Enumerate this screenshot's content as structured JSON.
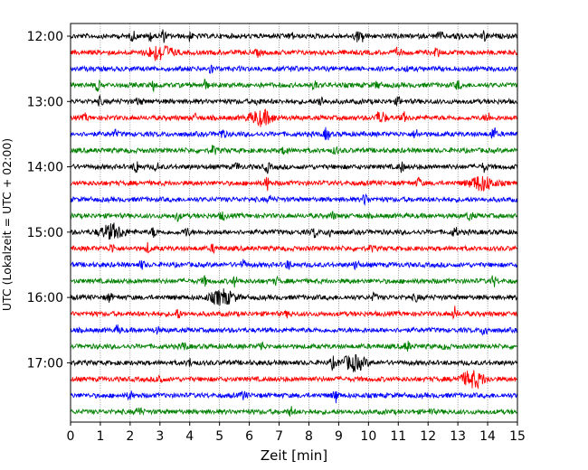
{
  "chart_data": {
    "type": "line",
    "subtype": "seismogram-dayplot",
    "xlabel": "Zeit  [min]",
    "ylabel": "UTC (Lokalzeit = UTC + 02:00)",
    "xlim": [
      0,
      15
    ],
    "x_ticks": [
      "0",
      "1",
      "2",
      "3",
      "4",
      "5",
      "6",
      "7",
      "8",
      "9",
      "10",
      "11",
      "12",
      "13",
      "14",
      "15"
    ],
    "y_ticks": [
      "12:00",
      "13:00",
      "14:00",
      "15:00",
      "16:00",
      "17:00"
    ],
    "trace_interval_min": 15,
    "trace_colors": [
      "#000000",
      "#ff0000",
      "#0000ff",
      "#008000"
    ],
    "grid": "vertical-dotted",
    "traces": [
      {
        "start": "12:00",
        "color": "#000000",
        "events": [
          [
            2.1,
            0.6
          ],
          [
            2.7,
            0.55
          ],
          [
            3.1,
            0.7
          ],
          [
            4.0,
            0.45
          ],
          [
            7.4,
            0.4
          ],
          [
            9.6,
            0.6
          ],
          [
            9.8,
            0.55
          ],
          [
            12.4,
            0.5
          ],
          [
            13.0,
            0.45
          ],
          [
            13.9,
            0.6
          ]
        ]
      },
      {
        "start": "12:15",
        "color": "#ff0000",
        "events": [
          [
            3.0,
            1.0
          ],
          [
            6.3,
            0.35
          ],
          [
            11.0,
            0.6
          ],
          [
            12.3,
            0.55
          ]
        ]
      },
      {
        "start": "12:30",
        "color": "#0000ff",
        "events": [
          [
            4.7,
            0.55
          ],
          [
            7.5,
            0.3
          ],
          [
            11.3,
            0.3
          ]
        ]
      },
      {
        "start": "12:45",
        "color": "#008000",
        "events": [
          [
            0.9,
            0.6
          ],
          [
            2.8,
            0.55
          ],
          [
            4.5,
            0.6
          ],
          [
            8.2,
            0.45
          ],
          [
            10.3,
            0.4
          ],
          [
            13.0,
            0.5
          ]
        ]
      },
      {
        "start": "13:00",
        "color": "#000000",
        "events": [
          [
            1.0,
            0.45
          ],
          [
            2.3,
            0.45
          ],
          [
            6.3,
            0.45
          ],
          [
            8.4,
            0.7
          ],
          [
            11.0,
            0.4
          ]
        ]
      },
      {
        "start": "13:15",
        "color": "#ff0000",
        "events": [
          [
            0.5,
            0.35
          ],
          [
            4.2,
            0.35
          ],
          [
            6.4,
            0.9
          ],
          [
            10.3,
            0.7
          ],
          [
            10.5,
            0.7
          ],
          [
            11.2,
            0.5
          ],
          [
            14.0,
            0.6
          ]
        ]
      },
      {
        "start": "13:30",
        "color": "#0000ff",
        "events": [
          [
            1.5,
            0.35
          ],
          [
            5.1,
            0.6
          ],
          [
            8.6,
            0.8
          ],
          [
            11.6,
            0.55
          ],
          [
            14.2,
            0.8
          ]
        ]
      },
      {
        "start": "13:45",
        "color": "#008000",
        "events": [
          [
            4.8,
            0.55
          ],
          [
            7.2,
            0.55
          ],
          [
            8.9,
            0.4
          ]
        ]
      },
      {
        "start": "14:00",
        "color": "#000000",
        "events": [
          [
            2.2,
            0.8
          ],
          [
            2.9,
            0.45
          ],
          [
            5.6,
            0.4
          ],
          [
            6.6,
            0.6
          ],
          [
            11.1,
            0.6
          ],
          [
            13.9,
            0.6
          ]
        ]
      },
      {
        "start": "14:15",
        "color": "#ff0000",
        "events": [
          [
            6.6,
            0.8
          ],
          [
            11.7,
            0.6
          ],
          [
            13.8,
            0.9
          ]
        ]
      },
      {
        "start": "14:30",
        "color": "#0000ff",
        "events": [
          [
            6.7,
            0.35
          ],
          [
            9.9,
            0.75
          ]
        ]
      },
      {
        "start": "14:45",
        "color": "#008000",
        "events": [
          [
            3.6,
            0.5
          ],
          [
            5.1,
            0.45
          ],
          [
            8.8,
            0.4
          ],
          [
            13.4,
            0.6
          ]
        ]
      },
      {
        "start": "15:00",
        "color": "#000000",
        "events": [
          [
            1.4,
            0.9
          ],
          [
            2.8,
            0.6
          ],
          [
            3.9,
            0.55
          ],
          [
            8.2,
            0.6
          ],
          [
            8.7,
            0.6
          ],
          [
            12.9,
            0.55
          ]
        ]
      },
      {
        "start": "15:15",
        "color": "#ff0000",
        "events": [
          [
            1.4,
            0.5
          ],
          [
            2.6,
            0.55
          ],
          [
            4.8,
            0.45
          ],
          [
            10.1,
            0.3
          ]
        ]
      },
      {
        "start": "15:30",
        "color": "#0000ff",
        "events": [
          [
            2.4,
            0.45
          ],
          [
            5.8,
            0.45
          ],
          [
            7.3,
            0.5
          ],
          [
            9.6,
            0.55
          ]
        ]
      },
      {
        "start": "15:45",
        "color": "#008000",
        "events": [
          [
            4.5,
            0.5
          ],
          [
            5.5,
            0.55
          ],
          [
            6.9,
            0.35
          ],
          [
            14.2,
            0.6
          ]
        ]
      },
      {
        "start": "16:00",
        "color": "#000000",
        "events": [
          [
            1.3,
            0.5
          ],
          [
            5.1,
            0.9
          ],
          [
            10.2,
            0.45
          ],
          [
            11.6,
            0.4
          ]
        ]
      },
      {
        "start": "16:15",
        "color": "#ff0000",
        "events": [
          [
            3.6,
            0.55
          ],
          [
            7.3,
            0.35
          ],
          [
            12.9,
            0.75
          ]
        ]
      },
      {
        "start": "16:30",
        "color": "#0000ff",
        "events": [
          [
            1.6,
            0.5
          ],
          [
            2.9,
            0.3
          ],
          [
            13.9,
            0.75
          ]
        ]
      },
      {
        "start": "16:45",
        "color": "#008000",
        "events": [
          [
            3.8,
            0.5
          ],
          [
            6.4,
            0.55
          ],
          [
            11.3,
            0.6
          ],
          [
            12.6,
            0.35
          ]
        ]
      },
      {
        "start": "17:00",
        "color": "#000000",
        "events": [
          [
            4.0,
            0.4
          ],
          [
            8.8,
            0.6
          ],
          [
            9.5,
            0.9
          ]
        ]
      },
      {
        "start": "17:15",
        "color": "#ff0000",
        "events": [
          [
            3.0,
            0.7
          ],
          [
            13.5,
            1.0
          ]
        ]
      },
      {
        "start": "17:30",
        "color": "#0000ff",
        "events": [
          [
            2.0,
            0.5
          ],
          [
            5.8,
            0.5
          ],
          [
            8.9,
            0.8
          ]
        ]
      },
      {
        "start": "17:45",
        "color": "#008000",
        "events": [
          [
            2.3,
            0.6
          ],
          [
            7.4,
            0.5
          ],
          [
            12.1,
            0.3
          ]
        ]
      }
    ]
  }
}
